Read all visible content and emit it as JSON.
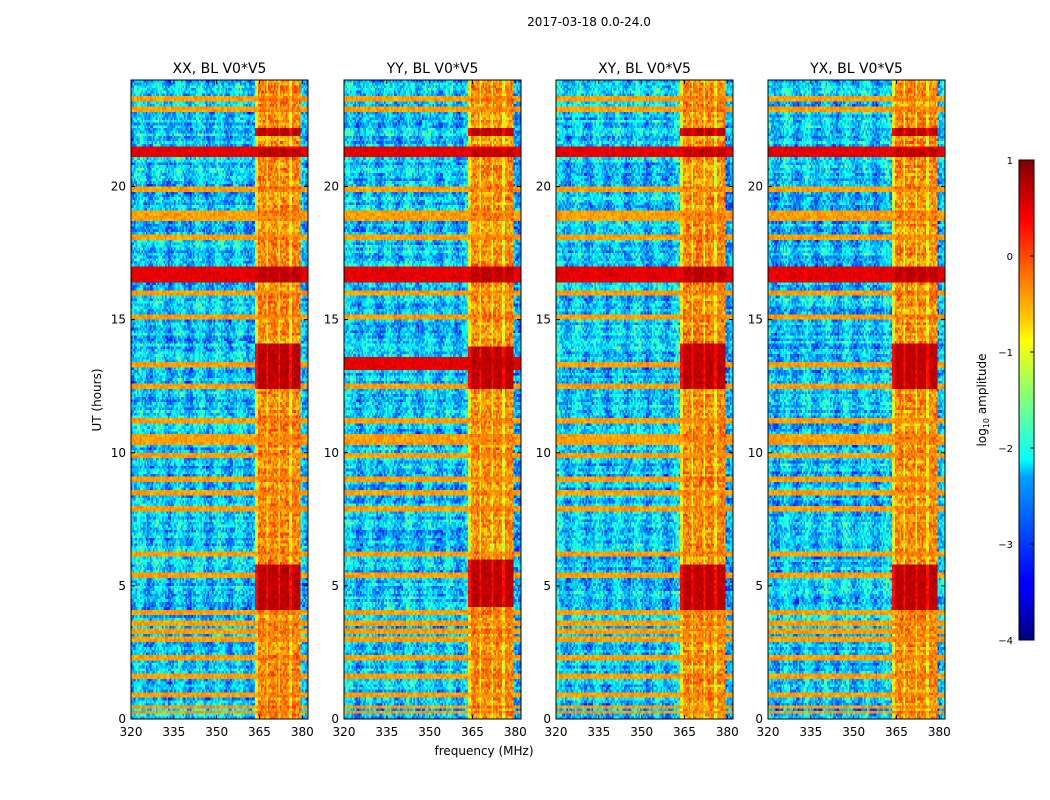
{
  "chart_data": {
    "type": "heatmap",
    "suptitle": "2017-03-18 0.0-24.0",
    "xlabel": "frequency (MHz)",
    "ylabel": "UT (hours)",
    "xlim": [
      320,
      382
    ],
    "ylim": [
      0,
      24
    ],
    "xticks": [
      320,
      335,
      350,
      365,
      380
    ],
    "yticks": [
      0,
      5,
      10,
      15,
      20
    ],
    "colormap": "jet",
    "colorbar": {
      "label": "log10 amplitude",
      "label_main": "log",
      "label_sub": "10",
      "label_rest": " amplitude",
      "range": [
        -4,
        1
      ],
      "ticks": [
        -4,
        -3,
        -2,
        -1,
        0,
        1
      ],
      "tick_labels": [
        "−4",
        "−3",
        "−2",
        "−1",
        "0",
        "1"
      ]
    },
    "bright_band_mhz": [
      363.5,
      379.5
    ],
    "panels": [
      {
        "title": "XX, BL V0*V5",
        "pol": "XX",
        "strong_rfi_hours": [
          [
            4.1,
            5.8
          ],
          [
            12.4,
            14.1
          ],
          [
            16.4,
            17.0
          ],
          [
            21.1,
            21.4
          ],
          [
            21.9,
            22.2
          ]
        ]
      },
      {
        "title": "YY, BL V0*V5",
        "pol": "YY",
        "strong_rfi_hours": [
          [
            4.2,
            6.0
          ],
          [
            12.4,
            14.0
          ],
          [
            16.4,
            17.0
          ],
          [
            21.1,
            21.4
          ],
          [
            21.9,
            22.2
          ]
        ]
      },
      {
        "title": "XY, BL V0*V5",
        "pol": "XY",
        "strong_rfi_hours": [
          [
            4.1,
            5.8
          ],
          [
            12.4,
            14.1
          ],
          [
            16.4,
            17.0
          ],
          [
            21.1,
            21.4
          ],
          [
            21.9,
            22.2
          ]
        ]
      },
      {
        "title": "YX, BL V0*V5",
        "pol": "YX",
        "strong_rfi_hours": [
          [
            4.1,
            5.8
          ],
          [
            12.4,
            14.1
          ],
          [
            16.4,
            17.0
          ],
          [
            21.1,
            21.4
          ],
          [
            21.9,
            22.2
          ]
        ]
      }
    ]
  }
}
